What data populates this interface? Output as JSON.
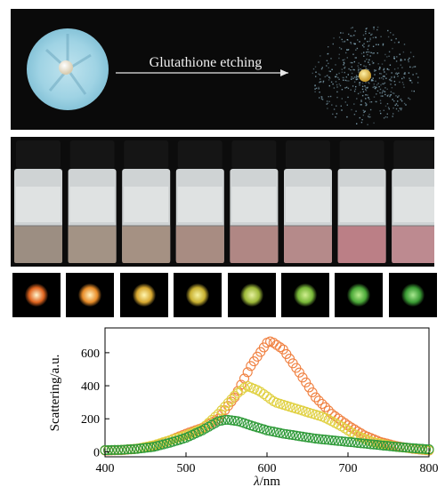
{
  "etching": {
    "label": "Glutathione etching"
  },
  "vials": {
    "count": 8,
    "liquid_colors": [
      "#9c8e82",
      "#a39385",
      "#a59183",
      "#a88c82",
      "#b08784",
      "#b58a8a",
      "#bb7f86",
      "#bd8a90"
    ]
  },
  "dark_field": {
    "count": 8,
    "spots": [
      {
        "core": "#fff6d0",
        "halo": "#e0641e"
      },
      {
        "core": "#fff2c0",
        "halo": "#e88c28"
      },
      {
        "core": "#fff6b0",
        "halo": "#d8a830"
      },
      {
        "core": "#f6f2a0",
        "halo": "#c8b030"
      },
      {
        "core": "#e6f0a0",
        "halo": "#9cb838"
      },
      {
        "core": "#d0ee90",
        "halo": "#78b838"
      },
      {
        "core": "#b8ec8c",
        "halo": "#4aa838"
      },
      {
        "core": "#a8e890",
        "halo": "#3a9c34"
      }
    ]
  },
  "chart_data": {
    "type": "scatter",
    "xlabel_italic": "λ",
    "xlabel_rest": "/nm",
    "ylabel": "Scattering/a.u.",
    "xlim": [
      400,
      800
    ],
    "ylim": [
      -30,
      750
    ],
    "xticks": [
      400,
      500,
      600,
      700,
      800
    ],
    "yticks": [
      0,
      200,
      400,
      600
    ],
    "marker": "open-circle",
    "series": [
      {
        "color": "#f08040",
        "peak": 670,
        "peak_x": 605,
        "points": [
          [
            400,
            8
          ],
          [
            420,
            10
          ],
          [
            440,
            18
          ],
          [
            460,
            35
          ],
          [
            480,
            70
          ],
          [
            500,
            110
          ],
          [
            520,
            145
          ],
          [
            540,
            200
          ],
          [
            560,
            330
          ],
          [
            580,
            520
          ],
          [
            600,
            660
          ],
          [
            605,
            670
          ],
          [
            620,
            620
          ],
          [
            640,
            480
          ],
          [
            660,
            330
          ],
          [
            680,
            230
          ],
          [
            700,
            160
          ],
          [
            720,
            100
          ],
          [
            740,
            60
          ],
          [
            760,
            35
          ],
          [
            780,
            18
          ],
          [
            800,
            8
          ]
        ]
      },
      {
        "color": "#e0d040",
        "peak": 400,
        "peak_x": 575,
        "points": [
          [
            400,
            10
          ],
          [
            420,
            12
          ],
          [
            440,
            20
          ],
          [
            460,
            40
          ],
          [
            480,
            70
          ],
          [
            500,
            100
          ],
          [
            520,
            140
          ],
          [
            540,
            230
          ],
          [
            560,
            340
          ],
          [
            575,
            400
          ],
          [
            590,
            370
          ],
          [
            610,
            300
          ],
          [
            630,
            270
          ],
          [
            650,
            240
          ],
          [
            670,
            210
          ],
          [
            690,
            160
          ],
          [
            710,
            100
          ],
          [
            730,
            60
          ],
          [
            760,
            30
          ],
          [
            800,
            10
          ]
        ]
      },
      {
        "color": "#2e9a38",
        "peak": 195,
        "peak_x": 550,
        "points": [
          [
            400,
            10
          ],
          [
            420,
            12
          ],
          [
            440,
            18
          ],
          [
            460,
            30
          ],
          [
            480,
            55
          ],
          [
            500,
            85
          ],
          [
            520,
            130
          ],
          [
            540,
            185
          ],
          [
            550,
            195
          ],
          [
            565,
            185
          ],
          [
            580,
            160
          ],
          [
            600,
            130
          ],
          [
            620,
            110
          ],
          [
            640,
            95
          ],
          [
            660,
            80
          ],
          [
            680,
            70
          ],
          [
            700,
            60
          ],
          [
            720,
            50
          ],
          [
            740,
            40
          ],
          [
            760,
            30
          ],
          [
            780,
            22
          ],
          [
            800,
            15
          ]
        ]
      }
    ]
  }
}
